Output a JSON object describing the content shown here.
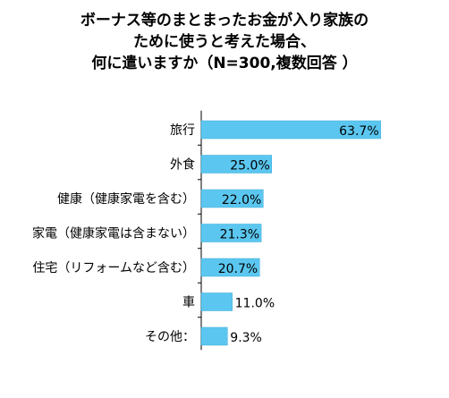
{
  "chart_data": {
    "type": "bar",
    "orientation": "horizontal",
    "title_lines": [
      "ボーナス等のまとまったお金が入り家族の",
      "ために使うと考えた場合、",
      "何に遣いますか（N=300,複数回答 ）"
    ],
    "categories": [
      "旅行",
      "外食",
      "健康（健康家電を含む）",
      "家電（健康家電は含まない）",
      "住宅（リフォームなど含む）",
      "車",
      "その他："
    ],
    "values": [
      63.7,
      25.0,
      22.0,
      21.3,
      20.7,
      11.0,
      9.3
    ],
    "value_labels": [
      "63.7%",
      "25.0%",
      "22.0%",
      "21.3%",
      "20.7%",
      "11.0%",
      "9.3%"
    ],
    "unit": "%",
    "xlim": [
      0,
      100
    ],
    "grid": false,
    "legend": "none",
    "colors": {
      "bar": "#5bc7f0",
      "bar_stroke": "#3aa9d8",
      "axis": "#000000"
    }
  }
}
